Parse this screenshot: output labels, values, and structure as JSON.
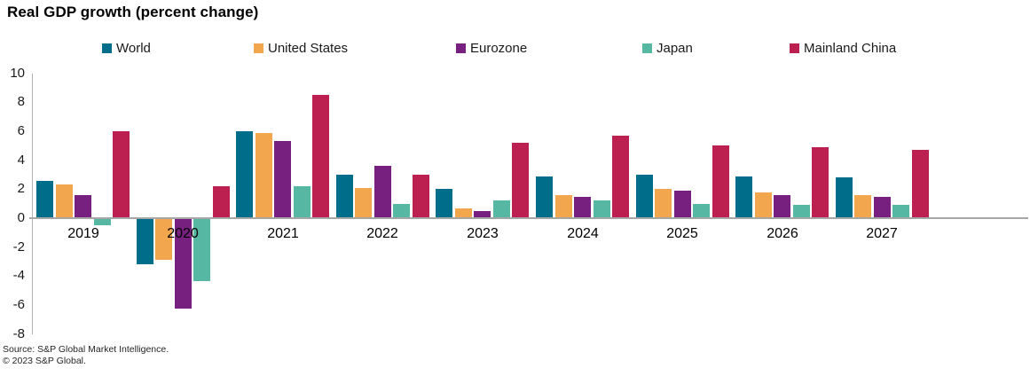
{
  "title": "Real GDP growth (percent change)",
  "chart_data": {
    "type": "bar",
    "title": "Real GDP growth (percent change)",
    "categories": [
      "2019",
      "2020",
      "2021",
      "2022",
      "2023",
      "2024",
      "2025",
      "2026",
      "2027"
    ],
    "series": [
      {
        "name": "World",
        "color": "#006d8a",
        "values": [
          2.6,
          -3.1,
          6.0,
          3.0,
          2.0,
          2.9,
          3.0,
          2.9,
          2.8
        ]
      },
      {
        "name": "United States",
        "color": "#f2a64e",
        "values": [
          2.3,
          -2.8,
          5.9,
          2.1,
          0.7,
          1.6,
          2.0,
          1.8,
          1.6
        ]
      },
      {
        "name": "Eurozone",
        "color": "#782080",
        "values": [
          1.6,
          -6.2,
          5.3,
          3.6,
          0.5,
          1.5,
          1.9,
          1.6,
          1.5
        ]
      },
      {
        "name": "Japan",
        "color": "#56b8a2",
        "values": [
          -0.4,
          -4.3,
          2.2,
          1.0,
          1.2,
          1.2,
          1.0,
          0.9,
          0.9
        ]
      },
      {
        "name": "Mainland China",
        "color": "#bb2051",
        "values": [
          6.0,
          2.2,
          8.5,
          3.0,
          5.2,
          5.7,
          5.0,
          4.9,
          4.7
        ]
      }
    ],
    "xlabel": "",
    "ylabel": "",
    "ylim": [
      -8,
      10
    ],
    "ytick_step": 2,
    "grid": false,
    "legend_position": "top"
  },
  "footer": {
    "source": "Source: S&P Global Market Intelligence.",
    "copyright": "© 2023 S&P Global."
  }
}
